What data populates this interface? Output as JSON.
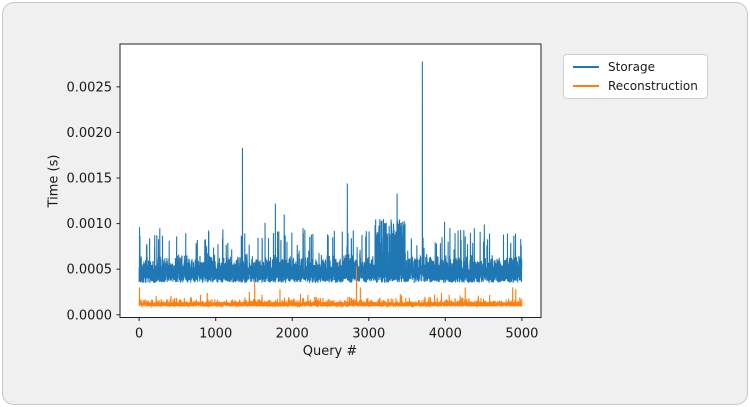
{
  "page": {
    "background": "#ffffff",
    "card_background": "#f0f0f1",
    "card_border_color": "#c9c9c9",
    "axes_background": "#ffffff",
    "spine_color": "#222222",
    "text_color": "#1a1a1a"
  },
  "chart_data": {
    "type": "line",
    "title": "",
    "xlabel": "Query #",
    "ylabel": "Time (s)",
    "grid": false,
    "legend": {
      "position": "outside-upper-right",
      "background": "#ffffff",
      "border_color": "#d0d0d0",
      "entries": [
        "Storage",
        "Reconstruction"
      ]
    },
    "n_points_per_series": 5000,
    "x_range_displayed": [
      -250,
      5250
    ],
    "y_range_displayed": [
      -3e-05,
      0.00297
    ],
    "x_ticks": {
      "values": [
        0,
        1000,
        2000,
        3000,
        4000,
        5000
      ],
      "labels": [
        "0",
        "1000",
        "2000",
        "3000",
        "4000",
        "5000"
      ]
    },
    "y_ticks": {
      "values": [
        0.0,
        0.0005,
        0.001,
        0.0015,
        0.002,
        0.0025
      ],
      "labels": [
        "0.0000",
        "0.0005",
        "0.0010",
        "0.0015",
        "0.0020",
        "0.0025"
      ]
    },
    "series": [
      {
        "name": "Storage",
        "color": "#1f77b4",
        "band": {
          "min": 0.00035,
          "core_max": 0.00052,
          "fuzz_max": 0.00068,
          "fuzz_prob": 0.6,
          "fuzz_pow": 1.8
        },
        "random_spikes": {
          "prob": 0.025,
          "min": 0.0007,
          "max": 0.00095
        },
        "elevated_region": {
          "from": 3080,
          "to": 3480,
          "prob": 0.3,
          "min": 0.0006,
          "max": 0.00105
        },
        "notable_spikes": [
          [
            5,
            0.00096
          ],
          [
            490,
            0.00086
          ],
          [
            760,
            0.00082
          ],
          [
            1090,
            0.00084
          ],
          [
            1350,
            0.00183
          ],
          [
            1645,
            0.00101
          ],
          [
            1780,
            0.00122
          ],
          [
            1895,
            0.0011
          ],
          [
            2250,
            0.00088
          ],
          [
            2550,
            0.00092
          ],
          [
            2720,
            0.00144
          ],
          [
            2960,
            0.00086
          ],
          [
            3370,
            0.00133
          ],
          [
            3700,
            0.00278
          ],
          [
            3990,
            0.00102
          ],
          [
            4060,
            0.00095
          ],
          [
            4260,
            0.00086
          ],
          [
            4510,
            0.00099
          ],
          [
            4760,
            0.00088
          ],
          [
            4985,
            0.00083
          ]
        ]
      },
      {
        "name": "Reconstruction",
        "color": "#ff7f0e",
        "band": {
          "min": 9e-05,
          "core_max": 0.00014,
          "fuzz_max": 0.0002,
          "fuzz_prob": 0.12,
          "fuzz_pow": 1.5
        },
        "random_spikes": {
          "prob": 0.007,
          "min": 0.00016,
          "max": 0.00023
        },
        "elevated_region": null,
        "notable_spikes": [
          [
            5,
            0.0003
          ],
          [
            890,
            0.00024
          ],
          [
            1440,
            0.00025
          ],
          [
            1510,
            0.00036
          ],
          [
            1840,
            0.00028
          ],
          [
            2840,
            0.00053
          ],
          [
            2890,
            0.0003
          ],
          [
            3860,
            0.00022
          ],
          [
            3950,
            0.00024
          ],
          [
            4050,
            0.00022
          ],
          [
            4260,
            0.0003
          ],
          [
            4430,
            0.00021
          ],
          [
            4880,
            0.0003
          ],
          [
            4920,
            0.00028
          ]
        ]
      }
    ]
  }
}
